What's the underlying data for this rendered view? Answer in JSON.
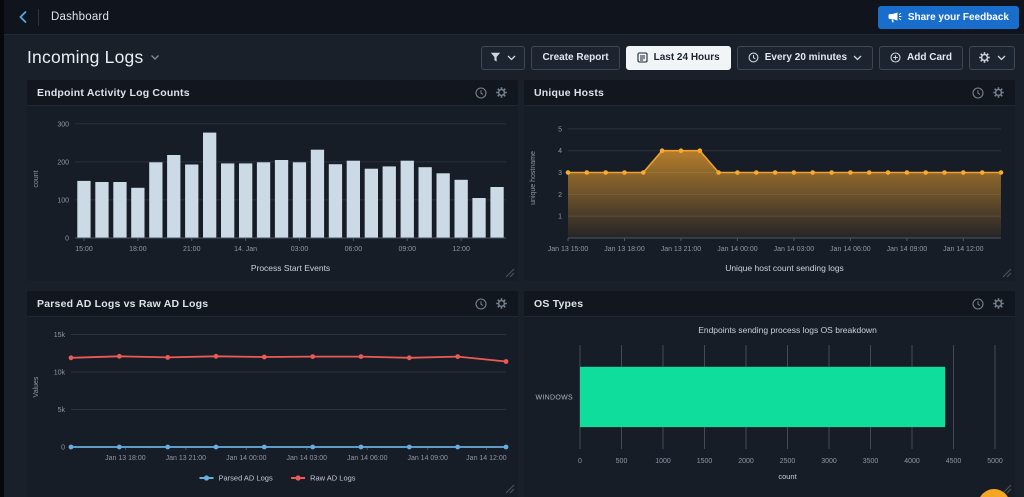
{
  "topbar": {
    "title": "Dashboard",
    "feedback_label": "Share your Feedback",
    "accent_blue": "#1a6ecb"
  },
  "header": {
    "title": "Incoming Logs"
  },
  "toolbar": {
    "create_report": "Create Report",
    "time_range": "Last 24 Hours",
    "refresh_interval": "Every 20 minutes",
    "add_card": "Add Card"
  },
  "icons": [
    "back-chevron-icon",
    "megaphone-icon",
    "caret-down-icon",
    "funnel-icon",
    "report-icon",
    "clock-icon",
    "plus-circle-icon",
    "gear-icon",
    "resize-handle-icon"
  ],
  "cards": [
    {
      "title": "Endpoint Activity Log Counts"
    },
    {
      "title": "Unique Hosts"
    },
    {
      "title": "Parsed AD Logs vs Raw AD Logs"
    },
    {
      "title": "OS Types"
    }
  ],
  "chart_data": [
    {
      "type": "bar",
      "title": "Endpoint Activity Log Counts",
      "xlabel": "Process Start Events",
      "ylabel": "count",
      "ylim": [
        0,
        310
      ],
      "yticks": [
        0,
        100,
        200,
        300
      ],
      "xtick_labels": [
        "15:00",
        "18:00",
        "21:00",
        "14. Jan",
        "03:00",
        "06:00",
        "09:00",
        "12:00"
      ],
      "xtick_step": 3,
      "values": [
        150,
        147,
        147,
        132,
        199,
        218,
        193,
        277,
        196,
        196,
        199,
        205,
        199,
        232,
        194,
        203,
        182,
        188,
        203,
        186,
        170,
        153,
        105,
        134
      ],
      "bar_color": "#ccdae6"
    },
    {
      "type": "area",
      "title": "Unique Hosts",
      "caption": "Unique host count sending logs",
      "ylabel": "unique hostname",
      "ylim": [
        0,
        5.5
      ],
      "yticks": [
        1,
        2,
        3,
        4,
        5
      ],
      "xtick_labels": [
        "Jan 13 15:00",
        "Jan 13 18:00",
        "Jan 13 21:00",
        "Jan 14 00:00",
        "Jan 14 03:00",
        "Jan 14 06:00",
        "Jan 14 09:00",
        "Jan 14 12:00"
      ],
      "xtick_step": 3,
      "values": [
        3,
        3,
        3,
        3,
        3,
        4,
        4,
        4,
        3,
        3,
        3,
        3,
        3,
        3,
        3,
        3,
        3,
        3,
        3,
        3,
        3,
        3,
        3,
        3
      ],
      "line_color": "#f0a22e",
      "marker_color": "#f8ab2e"
    },
    {
      "type": "line",
      "title": "Parsed AD Logs vs Raw AD Logs",
      "ylabel": "Values",
      "ylim": [
        0,
        16000
      ],
      "yticks": [
        {
          "v": 0,
          "label": "0"
        },
        {
          "v": 5000,
          "label": "5k"
        },
        {
          "v": 10000,
          "label": "10k"
        },
        {
          "v": 15000,
          "label": "15k"
        }
      ],
      "xticks": [
        {
          "pos": 0.125,
          "label": "Jan 13 18:00"
        },
        {
          "pos": 0.264,
          "label": "Jan 13 21:00"
        },
        {
          "pos": 0.403,
          "label": "Jan 14 00:00"
        },
        {
          "pos": 0.542,
          "label": "Jan 14 03:00"
        },
        {
          "pos": 0.681,
          "label": "Jan 14 06:00"
        },
        {
          "pos": 0.82,
          "label": "Jan 14 09:00"
        },
        {
          "pos": 0.955,
          "label": "Jan 14 12:00"
        }
      ],
      "series": [
        {
          "name": "Parsed AD Logs",
          "color": "#66aede",
          "values": [
            0,
            0,
            0,
            0,
            0,
            0,
            0,
            0,
            0,
            0
          ]
        },
        {
          "name": "Raw AD Logs",
          "color": "#ea5b55",
          "values": [
            11900,
            12100,
            11950,
            12100,
            12000,
            12050,
            12050,
            11900,
            12050,
            11400
          ]
        }
      ],
      "legend_position": "bottom"
    },
    {
      "type": "hbar",
      "title": "Endpoints sending process logs OS breakdown",
      "xlabel": "count",
      "categories": [
        "WINDOWS"
      ],
      "values": [
        4400
      ],
      "xlim": [
        0,
        5000
      ],
      "xticks": [
        0,
        500,
        1000,
        1500,
        2000,
        2500,
        3000,
        3500,
        4000,
        4500,
        5000
      ],
      "bar_color": "#0edd9b"
    }
  ]
}
